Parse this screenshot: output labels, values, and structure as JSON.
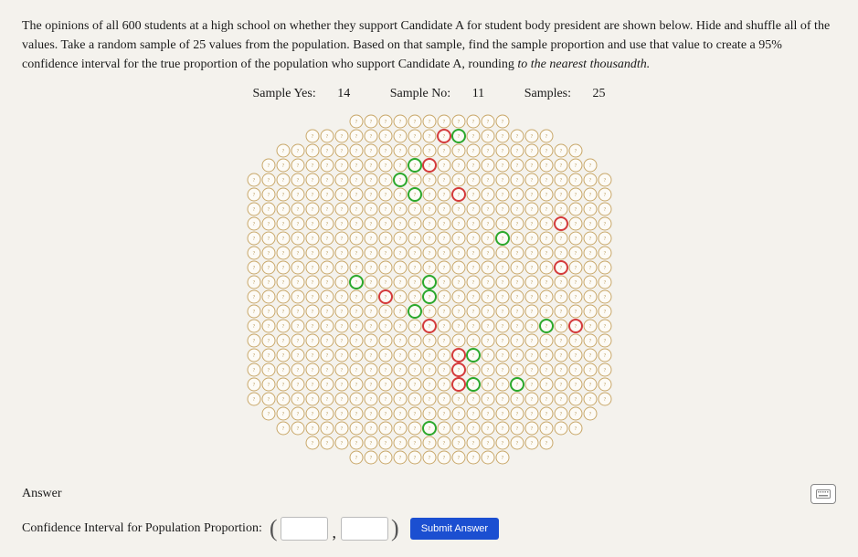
{
  "question": {
    "text_part1": "The opinions of all 600 students at a high school on whether they support Candidate A for student body president are shown below. Hide and shuffle all of the values. Take a random sample of 25 values from the population. Based on that sample, find the sample proportion and use that value to create a 95% confidence interval for the true proportion of the population who support Candidate A, rounding ",
    "text_em": "to the nearest thousandth.",
    "font_size": 14
  },
  "stats": {
    "yes_label": "Sample Yes:",
    "yes_value": "14",
    "no_label": "Sample No:",
    "no_value": "11",
    "samples_label": "Samples:",
    "samples_value": "25"
  },
  "grid": {
    "rows": 24,
    "cols": 25,
    "cell_size": 16,
    "radius": 7,
    "stroke": "#c9a86a",
    "stroke_width": 1,
    "fill": "#fdfbf6",
    "highlight_yes_stroke": "#2ca82c",
    "highlight_no_stroke": "#d43b3b",
    "highlight_stroke_width": 2,
    "yes_cells": [
      [
        1,
        14
      ],
      [
        3,
        11
      ],
      [
        4,
        10
      ],
      [
        5,
        11
      ],
      [
        8,
        17
      ],
      [
        11,
        7
      ],
      [
        11,
        12
      ],
      [
        12,
        12
      ],
      [
        13,
        11
      ],
      [
        14,
        20
      ],
      [
        16,
        15
      ],
      [
        18,
        15
      ],
      [
        18,
        18
      ],
      [
        21,
        12
      ]
    ],
    "no_cells": [
      [
        1,
        13
      ],
      [
        3,
        12
      ],
      [
        5,
        14
      ],
      [
        7,
        21
      ],
      [
        10,
        21
      ],
      [
        12,
        9
      ],
      [
        14,
        12
      ],
      [
        14,
        22
      ],
      [
        16,
        14
      ],
      [
        17,
        14
      ],
      [
        18,
        14
      ]
    ],
    "col_offsets": [
      4,
      3,
      2,
      2,
      1,
      1,
      1,
      0,
      0,
      0,
      0,
      0,
      0,
      0,
      0,
      0,
      0,
      0,
      1,
      1,
      1,
      2,
      2,
      3,
      4
    ],
    "glyph_color": "#b89a5a",
    "glyph_font_size": 6
  },
  "answer": {
    "section_label": "Answer",
    "ci_label": "Confidence Interval for Population Proportion:",
    "submit_label": "Submit Answer",
    "low_value": "",
    "high_value": ""
  },
  "colors": {
    "background": "#f4f2ed",
    "submit_button": "#1b4fd1"
  }
}
